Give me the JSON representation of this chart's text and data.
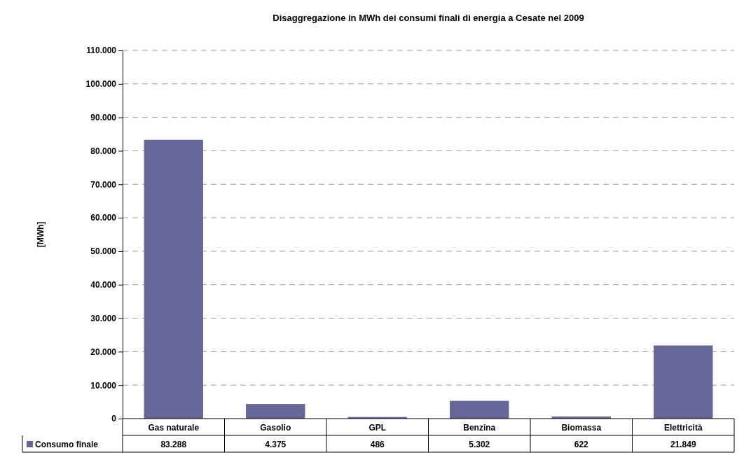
{
  "chart_data": {
    "type": "bar",
    "title": "Disaggregazione in MWh dei consumi finali di energia a Cesate nel 2009",
    "ylabel": "[MWh]",
    "categories": [
      "Gas naturale",
      "Gasolio",
      "GPL",
      "Benzina",
      "Biomassa",
      "Elettricità"
    ],
    "series": [
      {
        "name": "Consumo finale",
        "color": "#666699",
        "values": [
          83288,
          4375,
          486,
          5302,
          622,
          21849
        ],
        "value_labels": [
          "83.288",
          "4.375",
          "486",
          "5.302",
          "622",
          "21.849"
        ]
      }
    ],
    "ylim": [
      0,
      110000
    ],
    "yticks": [
      0,
      {
        "value": 10000,
        "label": "10.000"
      },
      {
        "value": 20000,
        "label": "20.000"
      },
      {
        "value": 30000,
        "label": "30.000"
      },
      {
        "value": 40000,
        "label": "40.000"
      },
      {
        "value": 50000,
        "label": "50.000"
      },
      {
        "value": 60000,
        "label": "60.000"
      },
      {
        "value": 70000,
        "label": "70.000"
      },
      {
        "value": 80000,
        "label": "80.000"
      },
      {
        "value": 90000,
        "label": "90.000"
      },
      {
        "value": 100000,
        "label": "100.000"
      },
      {
        "value": 110000,
        "label": "110.000"
      }
    ],
    "grid": "y",
    "legend": "bottom"
  }
}
